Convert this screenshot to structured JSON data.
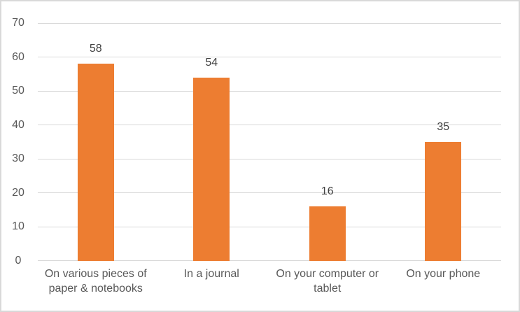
{
  "chart": {
    "background_color": "#ffffff",
    "frame_border_color": "#d9d9d9"
  },
  "chart_data": {
    "type": "bar",
    "title": "",
    "xlabel": "",
    "ylabel": "",
    "categories": [
      "On various pieces of paper & notebooks",
      "In a journal",
      "On your computer or tablet",
      "On your phone"
    ],
    "values": [
      58,
      54,
      16,
      35
    ],
    "data_labels": [
      "58",
      "54",
      "16",
      "35"
    ],
    "ylim": [
      0,
      70
    ],
    "yticks": [
      0,
      10,
      20,
      30,
      40,
      50,
      60,
      70
    ],
    "grid": "horizontal",
    "legend_position": "none",
    "bar_color": "#ED7D31",
    "gridline_color": "#d9d9d9",
    "axis_line_color": "#d9d9d9",
    "tick_label_color": "#595959",
    "data_label_color": "#404040",
    "category_label_color": "#595959"
  }
}
